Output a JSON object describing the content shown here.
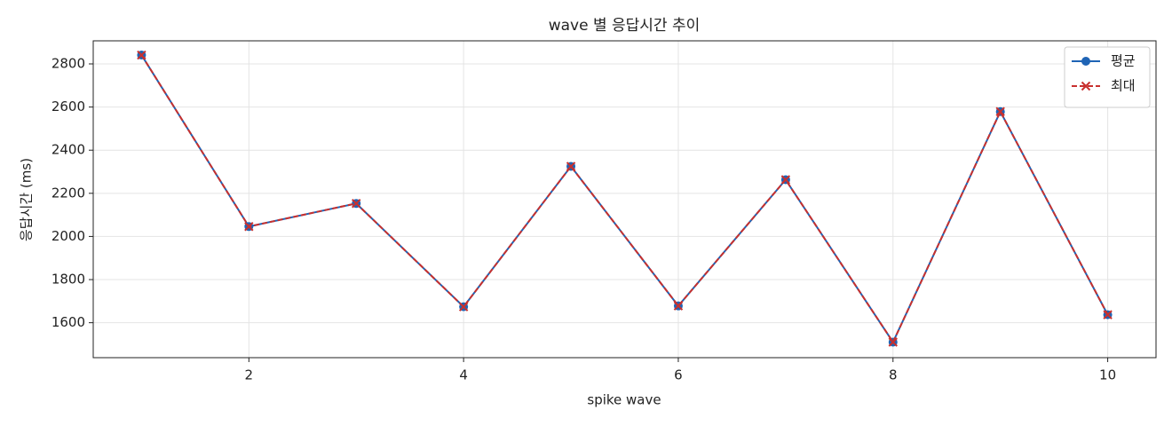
{
  "chart_data": {
    "type": "line",
    "title": "wave 별 응답시간 추이",
    "x_label": "spike wave",
    "y_label": "응답시간 (ms)",
    "x": [
      1,
      2,
      3,
      4,
      5,
      6,
      7,
      8,
      9,
      10
    ],
    "series": [
      {
        "name": "평균",
        "color": "#1f64b5",
        "marker": "circle",
        "dashed": false,
        "values": [
          2841,
          2046,
          2153,
          1674,
          2325,
          1678,
          2263,
          1510,
          2579,
          1637
        ]
      },
      {
        "name": "최대",
        "color": "#c8302e",
        "marker": "x",
        "dashed": true,
        "values": [
          2841,
          2046,
          2153,
          1674,
          2325,
          1678,
          2263,
          1510,
          2579,
          1637
        ]
      }
    ],
    "xlim": [
      0.55,
      10.45
    ],
    "ylim": [
      1438,
      2907
    ],
    "xticks": [
      2,
      4,
      6,
      8,
      10
    ],
    "yticks": [
      1600,
      1800,
      2000,
      2200,
      2400,
      2600,
      2800
    ],
    "grid": true,
    "legend": "upper right"
  }
}
